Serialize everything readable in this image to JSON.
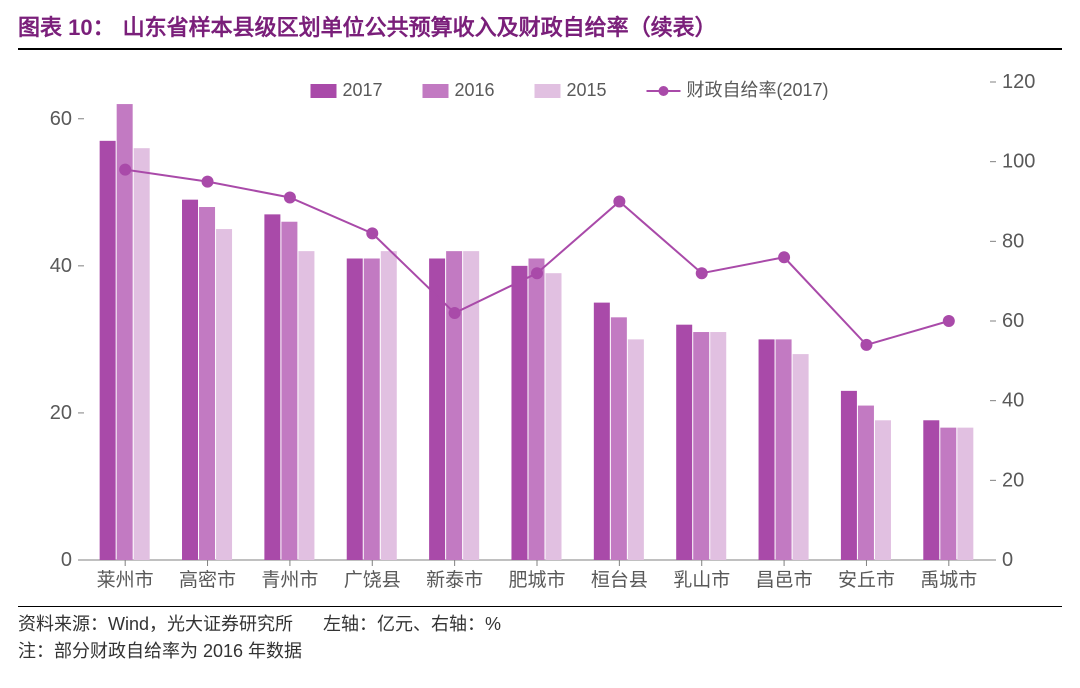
{
  "title_prefix": "图表 10：",
  "title": "山东省样本县级区划单位公共预算收入及财政自给率（续表）",
  "chart": {
    "type": "bar+line",
    "categories": [
      "莱州市",
      "高密市",
      "青州市",
      "广饶县",
      "新泰市",
      "肥城市",
      "桓台县",
      "乳山市",
      "昌邑市",
      "安丘市",
      "禹城市"
    ],
    "series_bars": [
      {
        "name": "2017",
        "color": "#a94aa9",
        "values": [
          57,
          49,
          47,
          41,
          41,
          40,
          35,
          32,
          30,
          23,
          19
        ]
      },
      {
        "name": "2016",
        "color": "#c27ac2",
        "values": [
          62,
          48,
          46,
          41,
          42,
          41,
          33,
          31,
          30,
          21,
          18
        ]
      },
      {
        "name": "2015",
        "color": "#e1c0e1",
        "values": [
          56,
          45,
          42,
          42,
          42,
          39,
          30,
          31,
          28,
          19,
          18
        ]
      }
    ],
    "series_line": {
      "name": "财政自给率(2017)",
      "color": "#a94aa9",
      "values": [
        98,
        95,
        91,
        82,
        62,
        72,
        90,
        72,
        76,
        54,
        60
      ]
    },
    "left_axis": {
      "min": 0,
      "max": 65,
      "ticks": [
        0,
        20,
        40,
        60
      ],
      "label": "亿元"
    },
    "right_axis": {
      "min": 0,
      "max": 120,
      "ticks": [
        0,
        20,
        40,
        60,
        80,
        100,
        120
      ],
      "label": "%"
    },
    "background_color": "#ffffff",
    "grid_color": "#bfbfbf",
    "bar_cluster_width": 0.62,
    "legend_position": "top"
  },
  "footer": {
    "source_label": "资料来源：",
    "source_text": "Wind，光大证券研究所",
    "left_axis_label": "左轴：亿元、右轴：%",
    "note_label": "注：",
    "note_text": "部分财政自给率为 2016 年数据"
  }
}
